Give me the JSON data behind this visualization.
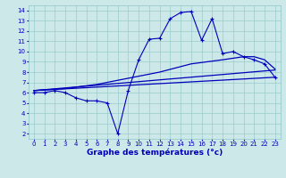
{
  "xlabel": "Graphe des températures (°c)",
  "bg_color": "#cce8e8",
  "line_color": "#0000bb",
  "grid_color": "#99cccc",
  "xlim": [
    -0.5,
    23.5
  ],
  "ylim": [
    1.5,
    14.5
  ],
  "xticks": [
    0,
    1,
    2,
    3,
    4,
    5,
    6,
    7,
    8,
    9,
    10,
    11,
    12,
    13,
    14,
    15,
    16,
    17,
    18,
    19,
    20,
    21,
    22,
    23
  ],
  "yticks": [
    2,
    3,
    4,
    5,
    6,
    7,
    8,
    9,
    10,
    11,
    12,
    13,
    14
  ],
  "series": [
    {
      "x": [
        0,
        1,
        2,
        3,
        4,
        5,
        6,
        7,
        8,
        9,
        10,
        11,
        12,
        13,
        14,
        15,
        16,
        17,
        18,
        19,
        20,
        21,
        22,
        23
      ],
      "y": [
        6.0,
        6.0,
        6.2,
        6.0,
        5.5,
        5.2,
        5.2,
        5.0,
        2.0,
        6.2,
        9.2,
        11.2,
        11.3,
        13.2,
        13.8,
        13.9,
        11.1,
        13.2,
        9.8,
        10.0,
        9.5,
        9.2,
        8.8,
        7.5
      ]
    },
    {
      "x": [
        0,
        3,
        6,
        9,
        12,
        15,
        18,
        20,
        21,
        22,
        23
      ],
      "y": [
        6.2,
        6.4,
        6.8,
        7.4,
        8.0,
        8.8,
        9.2,
        9.5,
        9.5,
        9.2,
        8.3
      ]
    },
    {
      "x": [
        0,
        23
      ],
      "y": [
        6.2,
        8.2
      ]
    },
    {
      "x": [
        0,
        23
      ],
      "y": [
        6.2,
        7.5
      ]
    }
  ]
}
